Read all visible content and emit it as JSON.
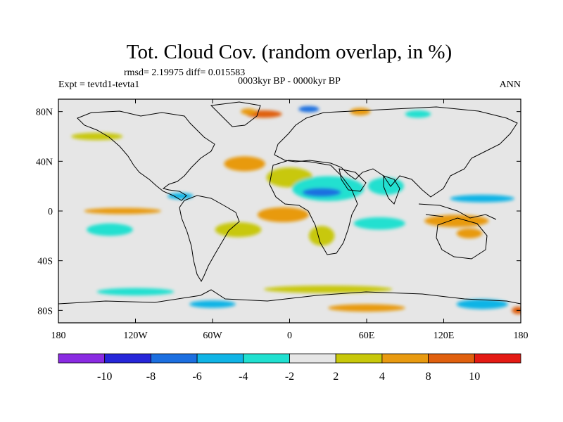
{
  "chart_data": {
    "type": "heatmap",
    "title": "Tot. Cloud Cov. (random overlap, in %)",
    "stats": "rmsd= 2.19975 diff= 0.015583",
    "subtitle": "0003kyr BP - 0000kyr BP",
    "left_label": "Expt = tevtd1-tevta1",
    "right_label": "ANN",
    "x_axis": {
      "range": [
        -180,
        180
      ],
      "ticks": [
        {
          "value": -180,
          "label": "180"
        },
        {
          "value": -120,
          "label": "120W"
        },
        {
          "value": -60,
          "label": "60W"
        },
        {
          "value": 0,
          "label": "0"
        },
        {
          "value": 60,
          "label": "60E"
        },
        {
          "value": 120,
          "label": "120E"
        },
        {
          "value": 180,
          "label": "180"
        }
      ]
    },
    "y_axis": {
      "range": [
        -90,
        90
      ],
      "ticks": [
        {
          "value": 80,
          "label": "80N"
        },
        {
          "value": 40,
          "label": "40N"
        },
        {
          "value": 0,
          "label": "0"
        },
        {
          "value": -40,
          "label": "40S"
        },
        {
          "value": -80,
          "label": "80S"
        }
      ]
    },
    "colorbar": {
      "levels": [
        -10,
        -8,
        -6,
        -4,
        -2,
        2,
        4,
        8,
        10
      ],
      "labels": [
        "-10",
        "-8",
        "-6",
        "-4",
        "-2",
        "2",
        "4",
        "8",
        "10"
      ],
      "colors": [
        "#8a2be2",
        "#2626d9",
        "#1c6fe0",
        "#10b4e6",
        "#20e0d0",
        "#e6e6e6",
        "#c8c80a",
        "#e89a10",
        "#e0600e",
        "#e41a14"
      ]
    },
    "regions": [
      {
        "name": "arctic-atlantic",
        "lon": -20,
        "lat": 78,
        "rx": 14,
        "ry": 3,
        "value": 9
      },
      {
        "name": "greenland-east",
        "lon": -32,
        "lat": 80,
        "rx": 6,
        "ry": 2.5,
        "value": 5
      },
      {
        "name": "barents",
        "lon": 15,
        "lat": 82,
        "rx": 8,
        "ry": 2.5,
        "value": -7
      },
      {
        "name": "arctic-east",
        "lon": 55,
        "lat": 80,
        "rx": 8,
        "ry": 3,
        "value": 5
      },
      {
        "name": "siberia-arctic",
        "lon": 100,
        "lat": 78,
        "rx": 10,
        "ry": 3,
        "value": -3
      },
      {
        "name": "north-pacific",
        "lon": -150,
        "lat": 60,
        "rx": 20,
        "ry": 3,
        "value": 3
      },
      {
        "name": "north-atlantic-south",
        "lon": -35,
        "lat": 38,
        "rx": 16,
        "ry": 6,
        "value": 6
      },
      {
        "name": "sahara-north",
        "lon": 0,
        "lat": 27,
        "rx": 18,
        "ry": 8,
        "value": 3
      },
      {
        "name": "arabia",
        "lon": 30,
        "lat": 18,
        "rx": 28,
        "ry": 10,
        "value": -4
      },
      {
        "name": "sahel-core",
        "lon": 25,
        "lat": 15,
        "rx": 15,
        "ry": 3.5,
        "value": -8
      },
      {
        "name": "india",
        "lon": 75,
        "lat": 20,
        "rx": 14,
        "ry": 7,
        "value": -3
      },
      {
        "name": "west-pacific",
        "lon": 150,
        "lat": 10,
        "rx": 25,
        "ry": 3,
        "value": -5
      },
      {
        "name": "central-america",
        "lon": -85,
        "lat": 12,
        "rx": 10,
        "ry": 2.5,
        "value": -6
      },
      {
        "name": "east-pacific",
        "lon": -130,
        "lat": 0,
        "rx": 30,
        "ry": 2.5,
        "value": 4
      },
      {
        "name": "equatorial-atlantic",
        "lon": -5,
        "lat": -3,
        "rx": 20,
        "ry": 6,
        "value": 6
      },
      {
        "name": "south-atlantic",
        "lon": -40,
        "lat": -15,
        "rx": 18,
        "ry": 6,
        "value": 3
      },
      {
        "name": "south-africa",
        "lon": 25,
        "lat": -20,
        "rx": 10,
        "ry": 8,
        "value": 3
      },
      {
        "name": "indian-ocean",
        "lon": 70,
        "lat": -10,
        "rx": 20,
        "ry": 5,
        "value": -3
      },
      {
        "name": "indonesia",
        "lon": 130,
        "lat": -8,
        "rx": 25,
        "ry": 5,
        "value": 4
      },
      {
        "name": "south-pacific",
        "lon": -140,
        "lat": -15,
        "rx": 18,
        "ry": 5,
        "value": -3
      },
      {
        "name": "australia-north",
        "lon": 140,
        "lat": -18,
        "rx": 10,
        "ry": 4,
        "value": 6
      },
      {
        "name": "southern-ocean-1",
        "lon": -120,
        "lat": -65,
        "rx": 30,
        "ry": 3,
        "value": -3
      },
      {
        "name": "southern-ocean-2",
        "lon": 30,
        "lat": -63,
        "rx": 50,
        "ry": 3,
        "value": 3
      },
      {
        "name": "antarctic-1",
        "lon": -60,
        "lat": -75,
        "rx": 18,
        "ry": 3,
        "value": -5
      },
      {
        "name": "antarctic-2",
        "lon": 60,
        "lat": -78,
        "rx": 30,
        "ry": 3,
        "value": 6
      },
      {
        "name": "antarctic-3",
        "lon": 150,
        "lat": -75,
        "rx": 20,
        "ry": 4,
        "value": -6
      },
      {
        "name": "antarctic-edge",
        "lon": 178,
        "lat": -80,
        "rx": 5,
        "ry": 3,
        "value": 9
      }
    ]
  }
}
